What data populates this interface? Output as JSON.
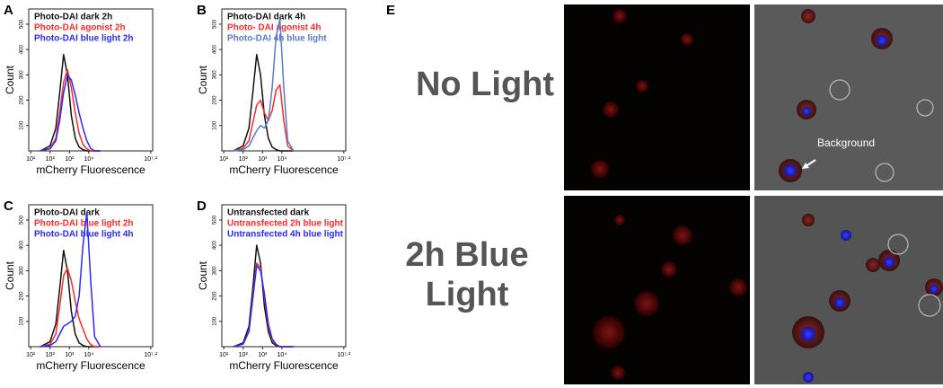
{
  "panels": [
    {
      "letter": "A",
      "chart_data": {
        "type": "line",
        "x_label": "mCherry Fluorescence",
        "y_label": "Count",
        "xlim": [
          0.9,
          7.3
        ],
        "ylim": [
          0,
          560
        ],
        "xticks": [
          {
            "value": 1,
            "label": "10¹"
          },
          {
            "value": 2,
            "label": "10²"
          },
          {
            "value": 3,
            "label": "10³"
          },
          {
            "value": 4,
            "label": "10⁴"
          },
          {
            "value": 7.2,
            "label": "10⁷·²"
          }
        ],
        "yticks": [
          100,
          200,
          300,
          400,
          500
        ],
        "x": [
          1.5,
          2,
          2.3,
          2.5,
          2.7,
          2.9,
          3.1,
          3.3,
          3.5,
          3.7,
          3.9,
          4.1,
          4.3,
          4.6
        ],
        "series": [
          {
            "name": "Photo-DAI dark 2h",
            "color": "#111111",
            "values": [
              0,
              20,
              90,
              230,
              380,
              300,
              140,
              50,
              15,
              5,
              0,
              0,
              0,
              0
            ]
          },
          {
            "name": "Photo-DAI agonist 2h",
            "color": "#ff2a2a",
            "values": [
              0,
              10,
              50,
              150,
              270,
              320,
              250,
              150,
              70,
              25,
              8,
              0,
              0,
              0
            ]
          },
          {
            "name": "Photo-DAI blue light 2h",
            "color": "#2a2aff",
            "values": [
              0,
              8,
              40,
              120,
              230,
              300,
              280,
              220,
              150,
              90,
              40,
              10,
              0,
              0
            ]
          }
        ]
      }
    },
    {
      "letter": "B",
      "chart_data": {
        "type": "line",
        "x_label": "mCherry Fluorescence",
        "y_label": "Count",
        "xlim": [
          0.9,
          7.3
        ],
        "ylim": [
          0,
          560
        ],
        "xticks": [
          {
            "value": 1,
            "label": "10¹"
          },
          {
            "value": 2,
            "label": "10²"
          },
          {
            "value": 3,
            "label": "10³"
          },
          {
            "value": 4,
            "label": "10⁴"
          },
          {
            "value": 7.2,
            "label": "10⁷·²"
          }
        ],
        "yticks": [
          100,
          200,
          300,
          400,
          500
        ],
        "x": [
          1.5,
          2,
          2.3,
          2.5,
          2.7,
          2.9,
          3.1,
          3.3,
          3.5,
          3.7,
          3.9,
          4.1,
          4.3,
          4.6
        ],
        "series": [
          {
            "name": "Photo-DAI dark 4h",
            "color": "#111111",
            "values": [
              0,
              20,
              90,
              230,
              380,
              300,
              140,
              50,
              15,
              5,
              0,
              0,
              0,
              0
            ]
          },
          {
            "name": "Photo- DAI agonist 4h",
            "color": "#ff2a2a",
            "values": [
              0,
              10,
              40,
              110,
              180,
              200,
              150,
              120,
              160,
              240,
              260,
              120,
              20,
              0
            ]
          },
          {
            "name": "Photo-DAI 4h blue light",
            "color": "#5a78d0",
            "values": [
              0,
              5,
              20,
              50,
              80,
              100,
              90,
              120,
              250,
              450,
              520,
              250,
              40,
              0
            ]
          }
        ]
      }
    },
    {
      "letter": "C",
      "chart_data": {
        "type": "line",
        "x_label": "mCherry Fluorescence",
        "y_label": "Count",
        "xlim": [
          0.9,
          7.3
        ],
        "ylim": [
          0,
          560
        ],
        "xticks": [
          {
            "value": 1,
            "label": "10¹"
          },
          {
            "value": 2,
            "label": "10²"
          },
          {
            "value": 3,
            "label": "10³"
          },
          {
            "value": 4,
            "label": "10⁴"
          },
          {
            "value": 7.2,
            "label": "10⁷·²"
          }
        ],
        "yticks": [
          100,
          200,
          300,
          400,
          500
        ],
        "x": [
          1.5,
          2,
          2.3,
          2.5,
          2.7,
          2.9,
          3.1,
          3.3,
          3.5,
          3.7,
          3.9,
          4.1,
          4.3,
          4.6
        ],
        "series": [
          {
            "name": "Photo-DAI dark",
            "color": "#111111",
            "values": [
              0,
              20,
              90,
              230,
              380,
              300,
              140,
              50,
              15,
              5,
              0,
              0,
              0,
              0
            ]
          },
          {
            "name": "Photo-DAI blue light 2h",
            "color": "#ff2a2a",
            "values": [
              0,
              10,
              50,
              160,
              280,
              310,
              260,
              180,
              110,
              70,
              30,
              8,
              0,
              0
            ]
          },
          {
            "name": "Photo-DAI blue light 4h",
            "color": "#2a2aff",
            "values": [
              0,
              5,
              20,
              50,
              80,
              90,
              100,
              120,
              200,
              400,
              530,
              260,
              40,
              0
            ]
          }
        ]
      }
    },
    {
      "letter": "D",
      "chart_data": {
        "type": "line",
        "x_label": "mCherry Fluorescence",
        "y_label": "Count",
        "xlim": [
          0.9,
          7.3
        ],
        "ylim": [
          0,
          560
        ],
        "xticks": [
          {
            "value": 1,
            "label": "10¹"
          },
          {
            "value": 2,
            "label": "10²"
          },
          {
            "value": 3,
            "label": "10³"
          },
          {
            "value": 4,
            "label": "10⁴"
          },
          {
            "value": 7.2,
            "label": "10⁷·²"
          }
        ],
        "yticks": [
          100,
          200,
          300,
          400,
          500
        ],
        "x": [
          1.5,
          2,
          2.3,
          2.5,
          2.7,
          2.9,
          3.1,
          3.3,
          3.5,
          3.7,
          3.9,
          4.1,
          4.3,
          4.6
        ],
        "series": [
          {
            "name": "Untransfected dark",
            "color": "#111111",
            "values": [
              0,
              15,
              80,
              230,
              400,
              330,
              160,
              60,
              15,
              5,
              0,
              0,
              0,
              0
            ]
          },
          {
            "name": "Untransfected 2h blue light",
            "color": "#ff2a2a",
            "values": [
              0,
              10,
              60,
              200,
              330,
              310,
              200,
              80,
              25,
              8,
              0,
              0,
              0,
              0
            ]
          },
          {
            "name": "Untransfected 4h blue light",
            "color": "#2a2aff",
            "values": [
              0,
              10,
              60,
              190,
              320,
              300,
              210,
              90,
              30,
              10,
              0,
              0,
              0,
              0
            ]
          }
        ]
      }
    }
  ],
  "panel_e": {
    "letter": "E",
    "row_labels": [
      "No Light",
      "2h Blue Light"
    ],
    "annotation": "Background"
  }
}
